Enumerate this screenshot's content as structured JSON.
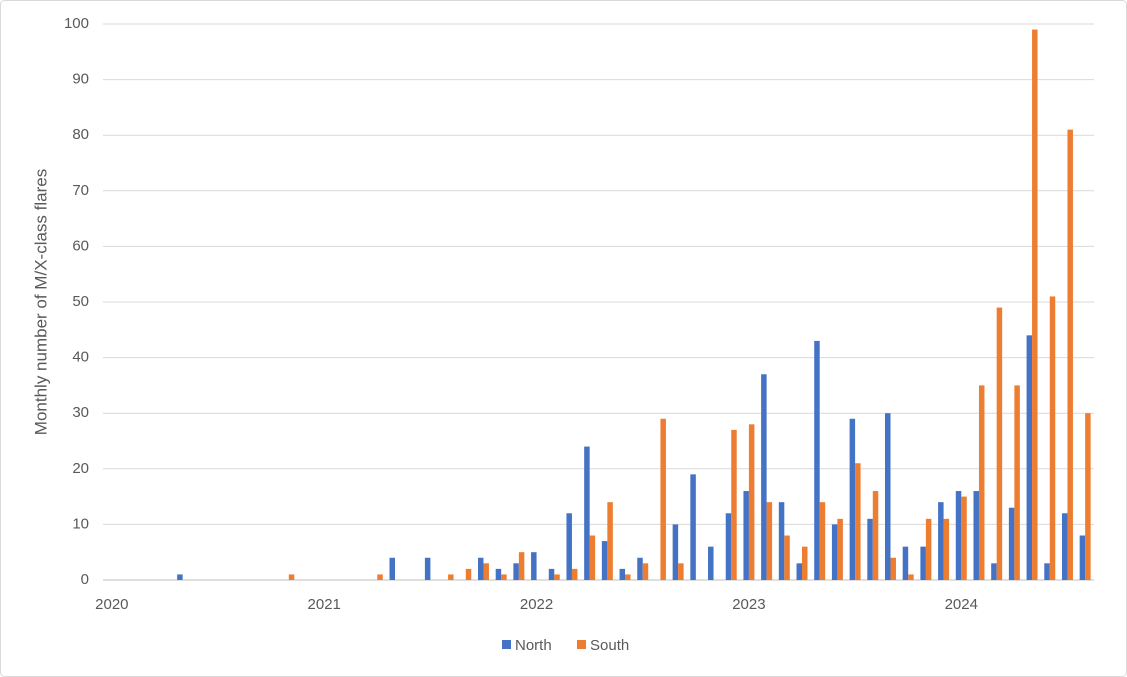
{
  "chart_data": {
    "type": "bar",
    "y_label": "Monthly number of M/X-class flares",
    "categories": [
      "2020",
      null,
      null,
      null,
      null,
      null,
      null,
      null,
      null,
      null,
      null,
      null,
      "2021",
      null,
      null,
      null,
      null,
      null,
      null,
      null,
      null,
      null,
      null,
      null,
      "2022",
      null,
      null,
      null,
      null,
      null,
      null,
      null,
      null,
      null,
      null,
      null,
      "2023",
      null,
      null,
      null,
      null,
      null,
      null,
      null,
      null,
      null,
      null,
      null,
      "2024",
      null,
      null,
      null,
      null,
      null,
      null,
      null
    ],
    "series": [
      {
        "name": "North",
        "color": "#4472c4",
        "values": [
          0,
          0,
          0,
          0,
          1,
          0,
          0,
          0,
          0,
          0,
          0,
          0,
          0,
          0,
          0,
          0,
          4,
          0,
          4,
          0,
          0,
          4,
          2,
          3,
          5,
          2,
          12,
          24,
          7,
          2,
          4,
          0,
          10,
          19,
          6,
          12,
          16,
          37,
          14,
          3,
          43,
          10,
          29,
          11,
          30,
          6,
          6,
          14,
          16,
          16,
          3,
          13,
          44,
          3,
          12,
          8
        ]
      },
      {
        "name": "South",
        "color": "#ed7d31",
        "values": [
          0,
          0,
          0,
          0,
          0,
          0,
          0,
          0,
          0,
          0,
          1,
          0,
          0,
          0,
          0,
          1,
          0,
          0,
          0,
          1,
          2,
          3,
          1,
          5,
          0,
          1,
          2,
          8,
          14,
          1,
          3,
          29,
          3,
          0,
          0,
          27,
          28,
          14,
          8,
          6,
          14,
          11,
          21,
          16,
          4,
          1,
          11,
          11,
          15,
          35,
          49,
          35,
          99,
          51,
          81,
          30
        ]
      }
    ],
    "ylim": [
      0,
      100
    ],
    "yticks": [
      0,
      10,
      20,
      30,
      40,
      50,
      60,
      70,
      80,
      90,
      100
    ],
    "grid": true,
    "legend": "bottom"
  }
}
